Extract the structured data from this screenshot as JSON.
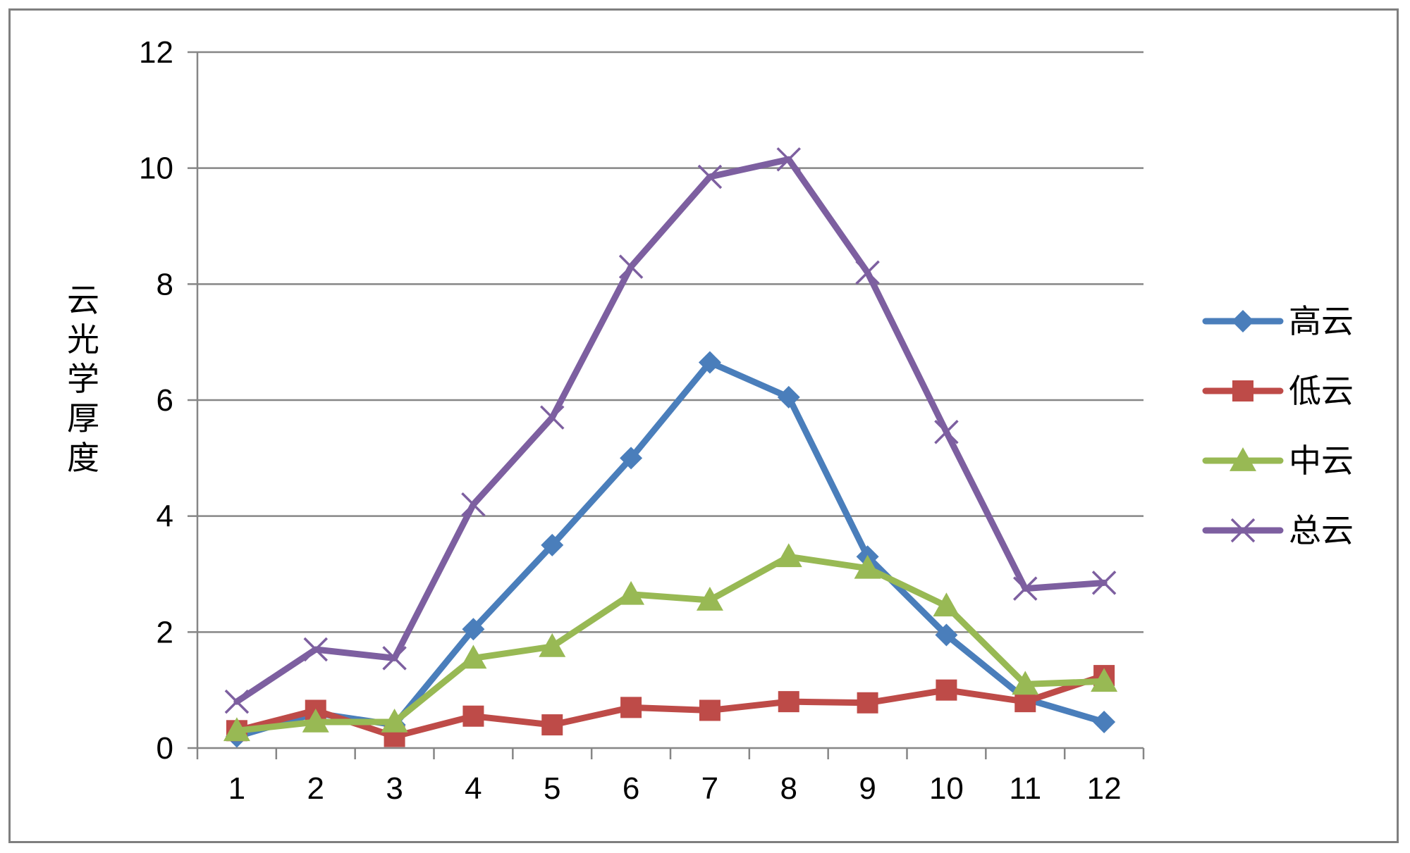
{
  "chart_data": {
    "type": "line",
    "title": "",
    "xlabel": "",
    "ylabel": "云光学厚度",
    "categories": [
      "1",
      "2",
      "3",
      "4",
      "5",
      "6",
      "7",
      "8",
      "9",
      "10",
      "11",
      "12"
    ],
    "ylim": [
      0,
      12
    ],
    "yticks": [
      0,
      2,
      4,
      6,
      8,
      10,
      12
    ],
    "grid": true,
    "legend_position": "right",
    "series": [
      {
        "name": "高云",
        "color": "#4a7ebb",
        "marker": "diamond",
        "values": [
          0.2,
          0.6,
          0.4,
          2.05,
          3.5,
          5.0,
          6.65,
          6.05,
          3.3,
          1.95,
          0.85,
          0.45
        ]
      },
      {
        "name": "低云",
        "color": "#be4b48",
        "marker": "square",
        "values": [
          0.3,
          0.65,
          0.2,
          0.55,
          0.4,
          0.7,
          0.65,
          0.8,
          0.78,
          1.0,
          0.8,
          1.25
        ]
      },
      {
        "name": "中云",
        "color": "#98b954",
        "marker": "triangle",
        "values": [
          0.3,
          0.45,
          0.45,
          1.55,
          1.75,
          2.65,
          2.55,
          3.3,
          3.1,
          2.45,
          1.1,
          1.15
        ]
      },
      {
        "name": "总云",
        "color": "#7d5fa0",
        "marker": "x",
        "values": [
          0.8,
          1.7,
          1.55,
          4.2,
          5.7,
          8.3,
          9.85,
          10.15,
          8.2,
          5.45,
          2.75,
          2.85
        ]
      }
    ]
  }
}
